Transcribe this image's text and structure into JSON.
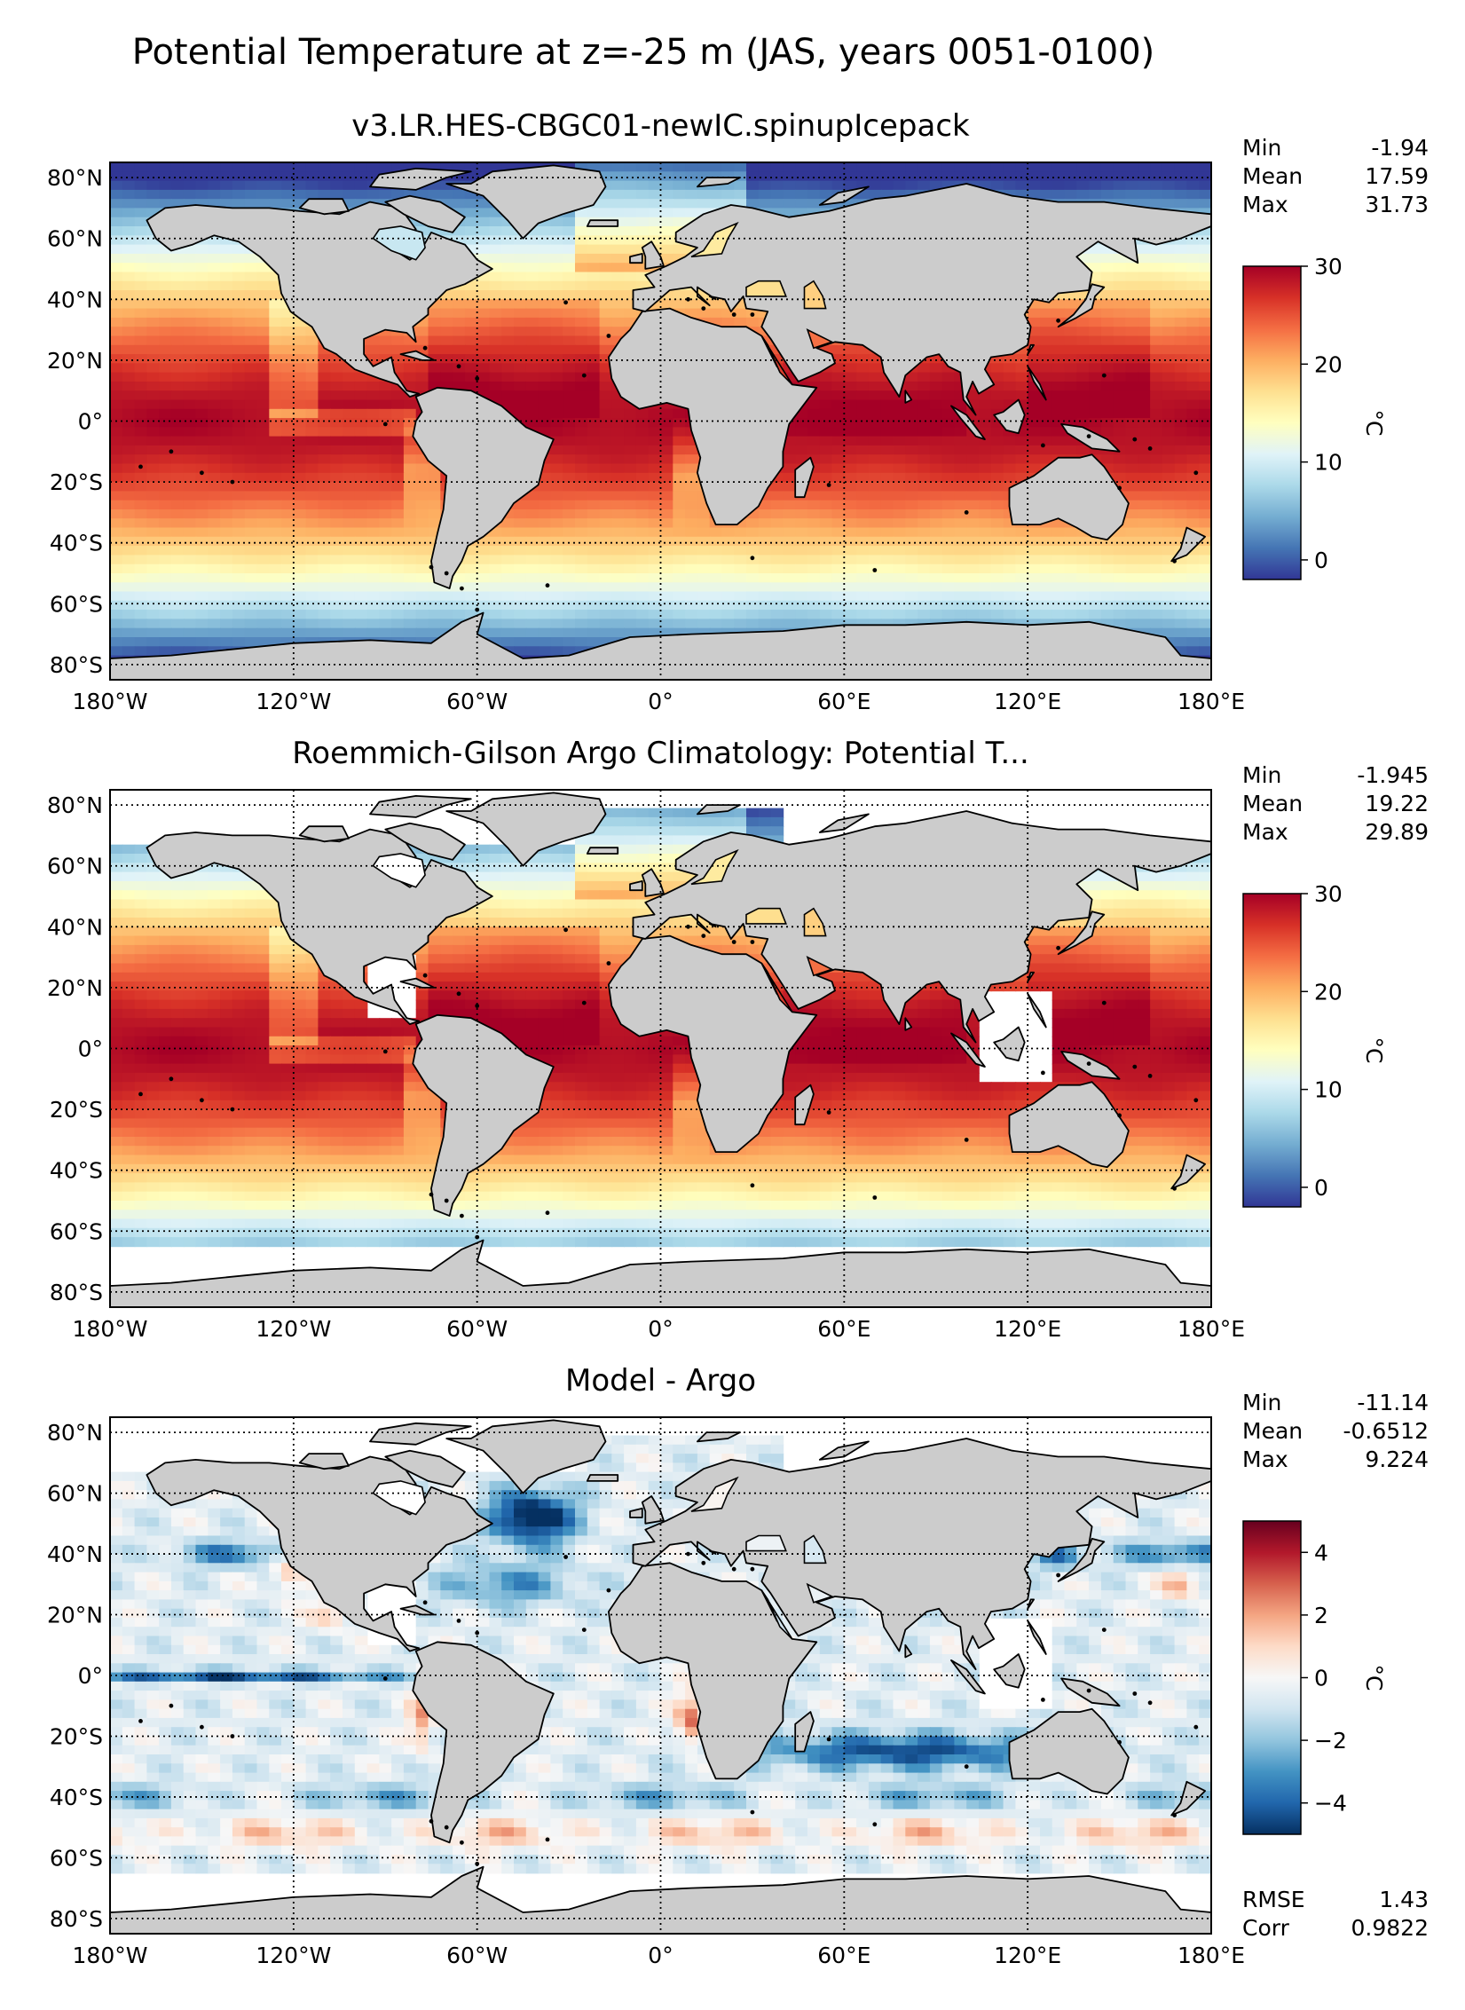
{
  "figure": {
    "title": "Potential Temperature at z=-25 m (JAS, years 0051-0100)"
  },
  "colors": {
    "land": "#cccccc",
    "missing": "#ffffff",
    "coast": "#000000"
  },
  "chart_data": [
    {
      "type": "heatmap",
      "title": "v3.LR.HES-CBGC01-newIC.spinupIcepack",
      "x_tick_labels": [
        "180°W",
        "120°W",
        "60°W",
        "0°",
        "60°E",
        "120°E",
        "180°E"
      ],
      "x_ticks": [
        -180,
        -120,
        -60,
        0,
        60,
        120,
        180
      ],
      "y_tick_labels": [
        "80°N",
        "60°N",
        "40°N",
        "20°N",
        "0°",
        "20°S",
        "40°S",
        "60°S",
        "80°S"
      ],
      "y_ticks": [
        80,
        60,
        40,
        20,
        0,
        -20,
        -40,
        -60,
        -80
      ],
      "xlim": [
        -180,
        180
      ],
      "ylim": [
        -85,
        85
      ],
      "grid": true,
      "colormap": "RdYlBu_r",
      "colorbar": {
        "label": "°C",
        "vmin": -2,
        "vmax": 30,
        "ticks": [
          0,
          10,
          20,
          30
        ],
        "tick_labels": [
          "0",
          "10",
          "20",
          "30"
        ]
      },
      "stats": [
        {
          "name": "Min",
          "value": "-1.94"
        },
        {
          "name": "Mean",
          "value": "17.59"
        },
        {
          "name": "Max",
          "value": "31.73"
        }
      ]
    },
    {
      "type": "heatmap",
      "title": "Roemmich-Gilson Argo Climatology: Potential T...",
      "x_tick_labels": [
        "180°W",
        "120°W",
        "60°W",
        "0°",
        "60°E",
        "120°E",
        "180°E"
      ],
      "x_ticks": [
        -180,
        -120,
        -60,
        0,
        60,
        120,
        180
      ],
      "y_tick_labels": [
        "80°N",
        "60°N",
        "40°N",
        "20°N",
        "0°",
        "20°S",
        "40°S",
        "60°S",
        "80°S"
      ],
      "y_ticks": [
        80,
        60,
        40,
        20,
        0,
        -20,
        -40,
        -60,
        -80
      ],
      "xlim": [
        -180,
        180
      ],
      "ylim": [
        -85,
        85
      ],
      "grid": true,
      "colormap": "RdYlBu_r",
      "colorbar": {
        "label": "°C",
        "vmin": -2,
        "vmax": 30,
        "ticks": [
          0,
          10,
          20,
          30
        ],
        "tick_labels": [
          "0",
          "10",
          "20",
          "30"
        ]
      },
      "stats": [
        {
          "name": "Min",
          "value": "-1.945"
        },
        {
          "name": "Mean",
          "value": "19.22"
        },
        {
          "name": "Max",
          "value": "29.89"
        }
      ]
    },
    {
      "type": "heatmap",
      "title": "Model - Argo",
      "x_tick_labels": [
        "180°W",
        "120°W",
        "60°W",
        "0°",
        "60°E",
        "120°E",
        "180°E"
      ],
      "x_ticks": [
        -180,
        -120,
        -60,
        0,
        60,
        120,
        180
      ],
      "y_tick_labels": [
        "80°N",
        "60°N",
        "40°N",
        "20°N",
        "0°",
        "20°S",
        "40°S",
        "60°S",
        "80°S"
      ],
      "y_ticks": [
        80,
        60,
        40,
        20,
        0,
        -20,
        -40,
        -60,
        -80
      ],
      "xlim": [
        -180,
        180
      ],
      "ylim": [
        -85,
        85
      ],
      "grid": true,
      "colormap": "RdBu_r",
      "colorbar": {
        "label": "°C",
        "vmin": -5,
        "vmax": 5,
        "ticks": [
          4,
          2,
          0,
          -2,
          -4
        ],
        "tick_labels": [
          "4",
          "2",
          "0",
          "−2",
          "−4"
        ]
      },
      "stats": [
        {
          "name": "Min",
          "value": "-11.14"
        },
        {
          "name": "Mean",
          "value": "-0.6512"
        },
        {
          "name": "Max",
          "value": "9.224"
        }
      ],
      "metrics": [
        {
          "name": "RMSE",
          "value": "1.43"
        },
        {
          "name": "Corr",
          "value": "0.9822"
        }
      ]
    }
  ]
}
